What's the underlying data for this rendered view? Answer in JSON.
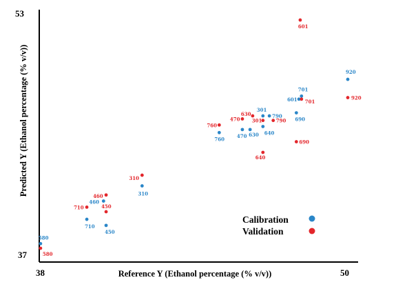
{
  "chart_data": {
    "type": "scatter",
    "title": "",
    "xlabel": "Reference Y (Ethanol percentage (% v/v))",
    "ylabel": "Predicted Y (Ethanol percentage (% v/v))",
    "xlim": [
      38,
      50
    ],
    "ylim": [
      37,
      53
    ],
    "x_ticks": [
      "38",
      "50"
    ],
    "y_ticks": [
      "37",
      "53"
    ],
    "grid": false,
    "legend_position": "bottom-right",
    "series": [
      {
        "name": "Calibration",
        "color": "#2a86c8",
        "points": [
          {
            "label": "580",
            "x": 38.05,
            "y": 37.8
          },
          {
            "label": "710",
            "x": 39.85,
            "y": 39.4
          },
          {
            "label": "460",
            "x": 40.5,
            "y": 40.6
          },
          {
            "label": "450",
            "x": 40.6,
            "y": 39.0
          },
          {
            "label": "310",
            "x": 42.0,
            "y": 41.6
          },
          {
            "label": "760",
            "x": 45.0,
            "y": 45.1
          },
          {
            "label": "470",
            "x": 45.9,
            "y": 45.3
          },
          {
            "label": "630",
            "x": 46.2,
            "y": 45.3
          },
          {
            "label": "640",
            "x": 46.7,
            "y": 45.5
          },
          {
            "label": "301",
            "x": 46.7,
            "y": 46.2
          },
          {
            "label": "790",
            "x": 46.95,
            "y": 46.2
          },
          {
            "label": "690",
            "x": 48.0,
            "y": 46.4
          },
          {
            "label": "601",
            "x": 48.1,
            "y": 47.3
          },
          {
            "label": "701",
            "x": 48.2,
            "y": 47.5
          },
          {
            "label": "920",
            "x": 50.0,
            "y": 48.6
          }
        ]
      },
      {
        "name": "Validation",
        "color": "#e3262b",
        "points": [
          {
            "label": "580",
            "x": 38.05,
            "y": 37.5
          },
          {
            "label": "710",
            "x": 39.85,
            "y": 40.2
          },
          {
            "label": "460",
            "x": 40.6,
            "y": 41.0
          },
          {
            "label": "450",
            "x": 40.6,
            "y": 39.9
          },
          {
            "label": "310",
            "x": 42.0,
            "y": 42.3
          },
          {
            "label": "760",
            "x": 45.0,
            "y": 45.6
          },
          {
            "label": "470",
            "x": 45.9,
            "y": 46.0
          },
          {
            "label": "630",
            "x": 46.3,
            "y": 46.2
          },
          {
            "label": "301",
            "x": 46.7,
            "y": 45.9
          },
          {
            "label": "790",
            "x": 47.1,
            "y": 45.9
          },
          {
            "label": "640",
            "x": 46.7,
            "y": 43.8
          },
          {
            "label": "690",
            "x": 48.0,
            "y": 44.5
          },
          {
            "label": "601",
            "x": 48.15,
            "y": 52.5
          },
          {
            "label": "701",
            "x": 48.2,
            "y": 47.3
          },
          {
            "label": "920",
            "x": 50.0,
            "y": 47.4
          }
        ]
      }
    ]
  }
}
